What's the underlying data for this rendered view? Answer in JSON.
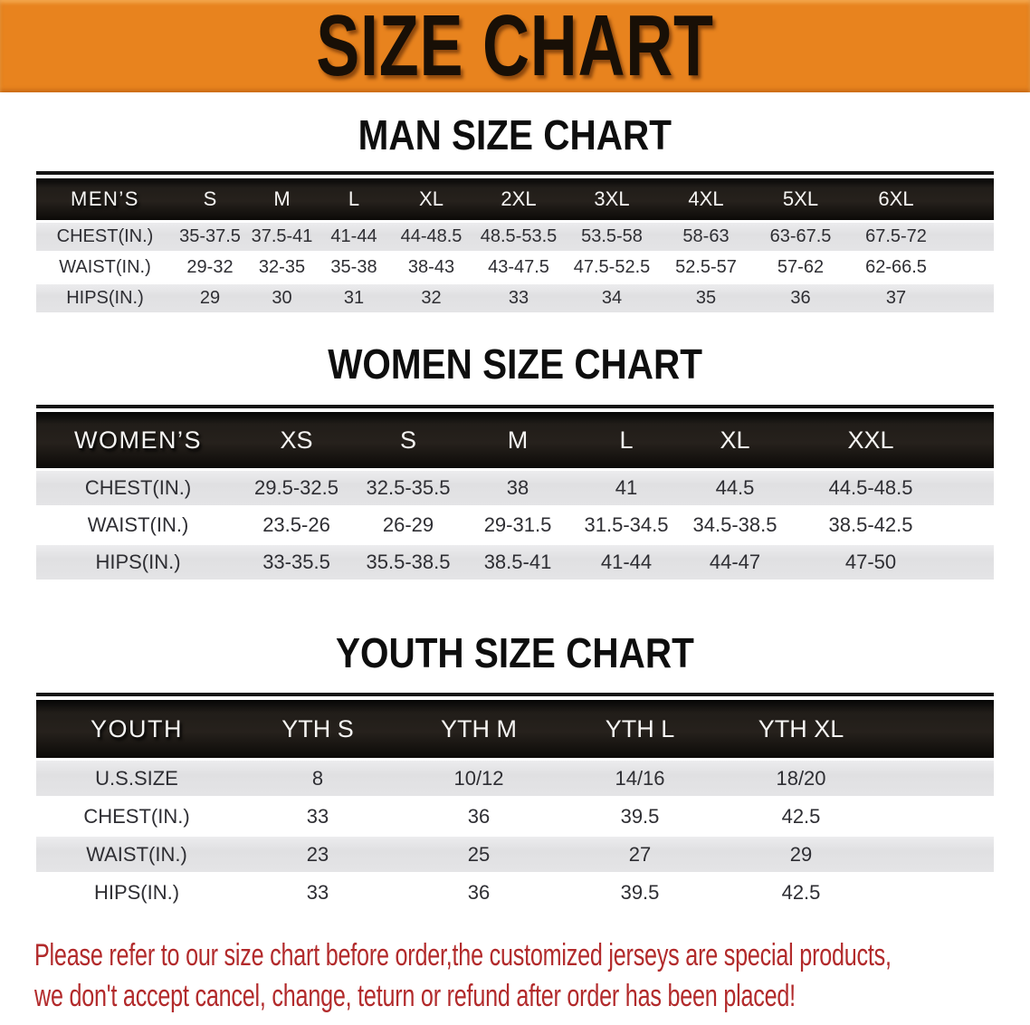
{
  "banner": {
    "title": "SIZE CHART",
    "bg": "#e8831e",
    "text_color": "#180f06"
  },
  "colors": {
    "header_bar": "#1f1b17",
    "stripe_gray": "#e3e3e4",
    "disclaimer_red": "#b22a2b"
  },
  "chart_data": [
    {
      "type": "table",
      "id": "men",
      "title": "MAN SIZE CHART",
      "corner_label": "MEN’S",
      "columns": [
        "S",
        "M",
        "L",
        "XL",
        "2XL",
        "3XL",
        "4XL",
        "5XL",
        "6XL"
      ],
      "rows": [
        {
          "label": "CHEST(IN.)",
          "values": [
            "35-37.5",
            "37.5-41",
            "41-44",
            "44-48.5",
            "48.5-53.5",
            "53.5-58",
            "58-63",
            "63-67.5",
            "67.5-72"
          ]
        },
        {
          "label": "WAIST(IN.)",
          "values": [
            "29-32",
            "32-35",
            "35-38",
            "38-43",
            "43-47.5",
            "47.5-52.5",
            "52.5-57",
            "57-62",
            "62-66.5"
          ]
        },
        {
          "label": "HIPS(IN.)",
          "values": [
            "29",
            "30",
            "31",
            "32",
            "33",
            "34",
            "35",
            "36",
            "37"
          ]
        }
      ]
    },
    {
      "type": "table",
      "id": "women",
      "title": "WOMEN SIZE CHART",
      "corner_label": "WOMEN’S",
      "columns": [
        "XS",
        "S",
        "M",
        "L",
        "XL",
        "XXL"
      ],
      "rows": [
        {
          "label": "CHEST(IN.)",
          "values": [
            "29.5-32.5",
            "32.5-35.5",
            "38",
            "41",
            "44.5",
            "44.5-48.5"
          ]
        },
        {
          "label": "WAIST(IN.)",
          "values": [
            "23.5-26",
            "26-29",
            "29-31.5",
            "31.5-34.5",
            "34.5-38.5",
            "38.5-42.5"
          ]
        },
        {
          "label": "HIPS(IN.)",
          "values": [
            "33-35.5",
            "35.5-38.5",
            "38.5-41",
            "41-44",
            "44-47",
            "47-50"
          ]
        }
      ]
    },
    {
      "type": "table",
      "id": "youth",
      "title": "YOUTH SIZE CHART",
      "corner_label": "YOUTH",
      "columns": [
        "YTH S",
        "YTH M",
        "YTH L",
        "YTH XL"
      ],
      "rows": [
        {
          "label": "U.S.SIZE",
          "values": [
            "8",
            "10/12",
            "14/16",
            "18/20"
          ]
        },
        {
          "label": "CHEST(IN.)",
          "values": [
            "33",
            "36",
            "39.5",
            "42.5"
          ]
        },
        {
          "label": "WAIST(IN.)",
          "values": [
            "23",
            "25",
            "27",
            "29"
          ]
        },
        {
          "label": "HIPS(IN.)",
          "values": [
            "33",
            "36",
            "39.5",
            "42.5"
          ]
        }
      ]
    }
  ],
  "disclaimer": {
    "lines": [
      "Please refer to our size chart before order,the customized jerseys are special products,",
      "we don't accept cancel, change, teturn or refund after order has been placed!"
    ]
  }
}
